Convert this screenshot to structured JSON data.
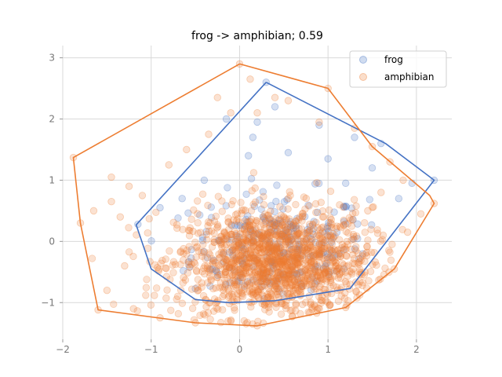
{
  "chart_data": {
    "type": "scatter",
    "title": "frog -> amphibian; 0.59",
    "xlabel": "",
    "ylabel": "",
    "xlim": [
      -2.0,
      2.4
    ],
    "ylim": [
      -1.6,
      3.2
    ],
    "xticks": [
      -2,
      -1,
      0,
      1,
      2
    ],
    "yticks": [
      -1,
      0,
      1,
      2,
      3
    ],
    "xtick_labels": [
      "−2",
      "−1",
      "0",
      "1",
      "2"
    ],
    "ytick_labels": [
      "−1",
      "0",
      "1",
      "2",
      "3"
    ],
    "grid": true,
    "legend_position": "top-right",
    "series": [
      {
        "name": "frog",
        "color": "#4472C4",
        "hull": [
          [
            0.3,
            2.6
          ],
          [
            1.65,
            1.6
          ],
          [
            2.2,
            1.0
          ],
          [
            1.25,
            -0.77
          ],
          [
            0.4,
            -0.97
          ],
          [
            -0.12,
            -1.0
          ],
          [
            -0.5,
            -0.95
          ],
          [
            -1.0,
            -0.45
          ],
          [
            -1.17,
            0.27
          ],
          [
            0.3,
            2.6
          ]
        ],
        "cluster": {
          "cx": 0.45,
          "cy": -0.1,
          "sx": 0.5,
          "sy": 0.45,
          "n": 260
        },
        "outliers": [
          [
            0.3,
            2.6
          ],
          [
            0.2,
            1.95
          ],
          [
            0.15,
            1.7
          ],
          [
            -0.15,
            2.0
          ],
          [
            0.4,
            2.2
          ],
          [
            0.9,
            1.9
          ],
          [
            1.3,
            1.7
          ],
          [
            1.6,
            1.6
          ],
          [
            1.0,
            1.35
          ],
          [
            1.5,
            1.2
          ],
          [
            1.95,
            0.95
          ],
          [
            2.2,
            1.0
          ],
          [
            -1.15,
            0.28
          ],
          [
            -0.9,
            0.55
          ],
          [
            -0.65,
            0.7
          ],
          [
            -0.4,
            1.0
          ],
          [
            0.1,
            1.4
          ],
          [
            0.55,
            1.45
          ],
          [
            1.2,
            0.95
          ],
          [
            1.8,
            0.7
          ]
        ]
      },
      {
        "name": "amphibian",
        "color": "#ED7D31",
        "hull": [
          [
            0.0,
            2.9
          ],
          [
            1.0,
            2.5
          ],
          [
            1.5,
            1.55
          ],
          [
            2.15,
            0.75
          ],
          [
            2.2,
            0.62
          ],
          [
            1.75,
            -0.45
          ],
          [
            1.2,
            -1.08
          ],
          [
            0.2,
            -1.38
          ],
          [
            -0.5,
            -1.33
          ],
          [
            -1.6,
            -1.12
          ],
          [
            -1.8,
            0.3
          ],
          [
            -1.88,
            1.37
          ],
          [
            0.0,
            2.9
          ]
        ],
        "cluster": {
          "cx": 0.4,
          "cy": -0.35,
          "sx": 0.55,
          "sy": 0.45,
          "n": 1400
        },
        "outliers": [
          [
            0.0,
            2.9
          ],
          [
            0.12,
            2.65
          ],
          [
            -0.25,
            2.35
          ],
          [
            0.4,
            2.35
          ],
          [
            0.55,
            2.3
          ],
          [
            1.0,
            2.5
          ],
          [
            -0.1,
            2.1
          ],
          [
            0.2,
            2.1
          ],
          [
            0.9,
            1.95
          ],
          [
            1.3,
            1.85
          ],
          [
            -1.88,
            1.37
          ],
          [
            -1.8,
            0.3
          ],
          [
            -1.65,
            0.5
          ],
          [
            -1.45,
            0.65
          ],
          [
            -1.35,
            0.4
          ],
          [
            -1.6,
            -1.12
          ],
          [
            -1.5,
            -0.8
          ],
          [
            -1.3,
            -0.4
          ],
          [
            -1.1,
            0.75
          ],
          [
            -0.8,
            1.25
          ],
          [
            -0.6,
            1.5
          ],
          [
            -0.35,
            1.75
          ],
          [
            1.5,
            1.55
          ],
          [
            1.7,
            1.3
          ],
          [
            1.85,
            1.0
          ],
          [
            2.2,
            0.62
          ],
          [
            2.05,
            0.45
          ],
          [
            1.9,
            0.15
          ],
          [
            1.75,
            -0.45
          ],
          [
            1.2,
            -1.08
          ],
          [
            0.2,
            -1.38
          ],
          [
            -0.5,
            -1.33
          ],
          [
            -0.9,
            -1.25
          ],
          [
            -1.2,
            -1.1
          ],
          [
            -1.45,
            1.05
          ],
          [
            -1.25,
            0.9
          ],
          [
            1.6,
            0.8
          ],
          [
            1.45,
            0.5
          ]
        ]
      }
    ]
  }
}
